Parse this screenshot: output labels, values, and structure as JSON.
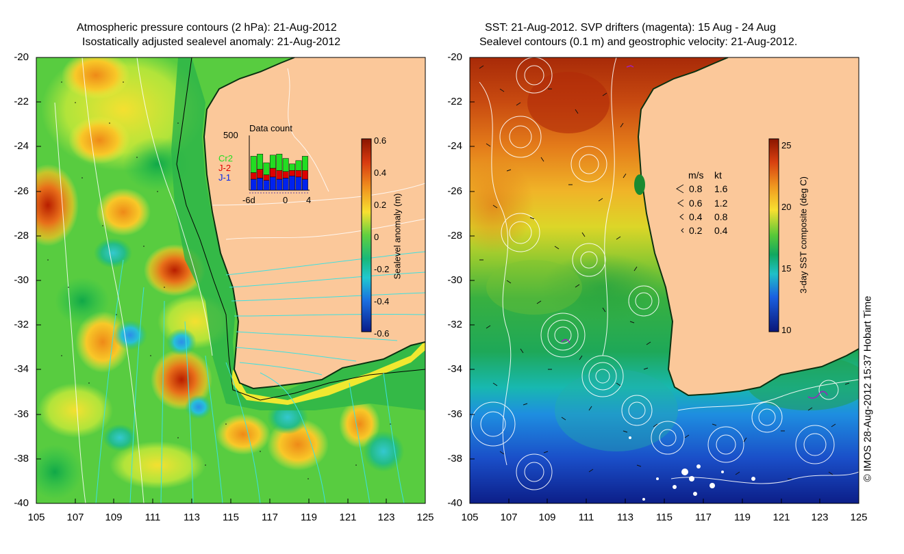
{
  "left_panel": {
    "title_line1": "Atmospheric pressure contours (2 hPa): 21-Aug-2012",
    "title_line2": "Isostatically adjusted sealevel anomaly: 21-Aug-2012",
    "y_ticks": [
      "-20",
      "-22",
      "-24",
      "-26",
      "-28",
      "-30",
      "-32",
      "-34",
      "-36",
      "-38",
      "-40"
    ],
    "x_ticks": [
      "105",
      "107",
      "109",
      "111",
      "113",
      "115",
      "117",
      "119",
      "121",
      "123",
      "125"
    ],
    "colorbar": {
      "label": "Sealevel anomaly (m)",
      "ticks": [
        "0.6",
        "0.4",
        "0.2",
        "0",
        "-0.2",
        "-0.4",
        "-0.6"
      ],
      "range": [
        -0.6,
        0.6
      ]
    },
    "data_count": {
      "title": "Data count",
      "ymax_label": "500",
      "x_labels": [
        "-6d",
        "0",
        "4"
      ],
      "legend": [
        {
          "label": "Cr2",
          "color": "#22dd22"
        },
        {
          "label": "J-2",
          "color": "#dd0000"
        },
        {
          "label": "J-1",
          "color": "#0022ee"
        }
      ],
      "bars": [
        {
          "j1": 0.2,
          "j2": 0.12,
          "cr2": 0.3
        },
        {
          "j1": 0.22,
          "j2": 0.16,
          "cr2": 0.28
        },
        {
          "j1": 0.18,
          "j2": 0.1,
          "cr2": 0.22
        },
        {
          "j1": 0.24,
          "j2": 0.16,
          "cr2": 0.24
        },
        {
          "j1": 0.2,
          "j2": 0.16,
          "cr2": 0.3
        },
        {
          "j1": 0.22,
          "j2": 0.12,
          "cr2": 0.24
        },
        {
          "j1": 0.26,
          "j2": 0.1,
          "cr2": 0.12
        },
        {
          "j1": 0.24,
          "j2": 0.12,
          "cr2": 0.18
        },
        {
          "j1": 0.2,
          "j2": 0.16,
          "cr2": 0.26
        }
      ]
    }
  },
  "right_panel": {
    "title_line1": "SST: 21-Aug-2012. SVP drifters (magenta): 15 Aug - 24 Aug",
    "title_line2": "Sealevel contours (0.1 m) and geostrophic velocity: 21-Aug-2012.",
    "y_ticks": [
      "-20",
      "-22",
      "-24",
      "-26",
      "-28",
      "-30",
      "-32",
      "-34",
      "-36",
      "-38",
      "-40"
    ],
    "x_ticks": [
      "105",
      "107",
      "109",
      "111",
      "113",
      "115",
      "117",
      "119",
      "121",
      "123",
      "125"
    ],
    "colorbar": {
      "label": "3-day SST composite (deg C)",
      "ticks": [
        "25",
        "20",
        "15",
        "10"
      ],
      "range": [
        10,
        25
      ]
    },
    "velocity_legend": {
      "header_ms": "m/s",
      "header_kt": "kt",
      "rows": [
        {
          "ms": "0.8",
          "kt": "1.6"
        },
        {
          "ms": "0.6",
          "kt": "1.2"
        },
        {
          "ms": "0.4",
          "kt": "0.8"
        },
        {
          "ms": "0.2",
          "kt": "0.4"
        }
      ]
    }
  },
  "credit": "© IMOS 28-Aug-2012 15:37 Hobart Time",
  "colors": {
    "land": "#fbc89a",
    "contour_cyan": "#3de0e0",
    "contour_white": "#ffffff"
  }
}
